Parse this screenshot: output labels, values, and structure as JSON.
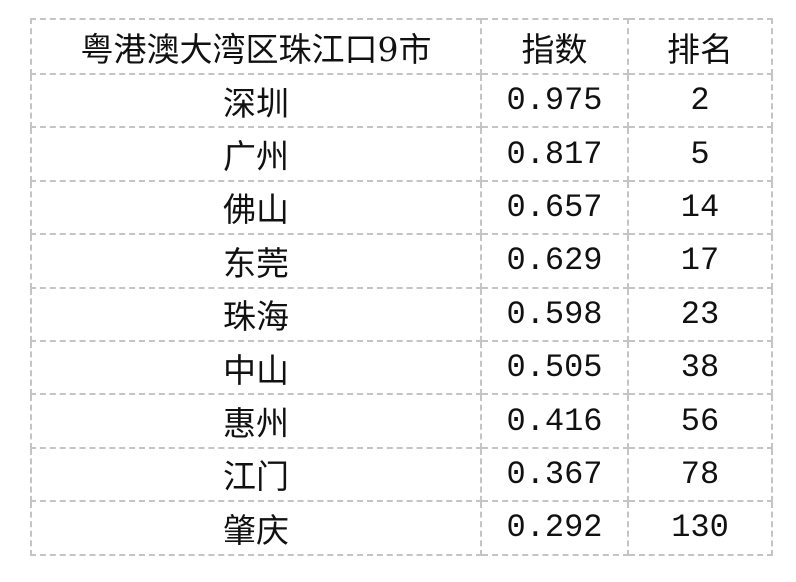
{
  "table": {
    "headers": [
      "粤港澳大湾区珠江口9市",
      "指数",
      "排名"
    ],
    "rows": [
      {
        "city": "深圳",
        "index": "0.975",
        "rank": "2"
      },
      {
        "city": "广州",
        "index": "0.817",
        "rank": "5"
      },
      {
        "city": "佛山",
        "index": "0.657",
        "rank": "14"
      },
      {
        "city": "东莞",
        "index": "0.629",
        "rank": "17"
      },
      {
        "city": "珠海",
        "index": "0.598",
        "rank": "23"
      },
      {
        "city": "中山",
        "index": "0.505",
        "rank": "38"
      },
      {
        "city": "惠州",
        "index": "0.416",
        "rank": "56"
      },
      {
        "city": "江门",
        "index": "0.367",
        "rank": "78"
      },
      {
        "city": "肇庆",
        "index": "0.292",
        "rank": "130"
      }
    ]
  }
}
